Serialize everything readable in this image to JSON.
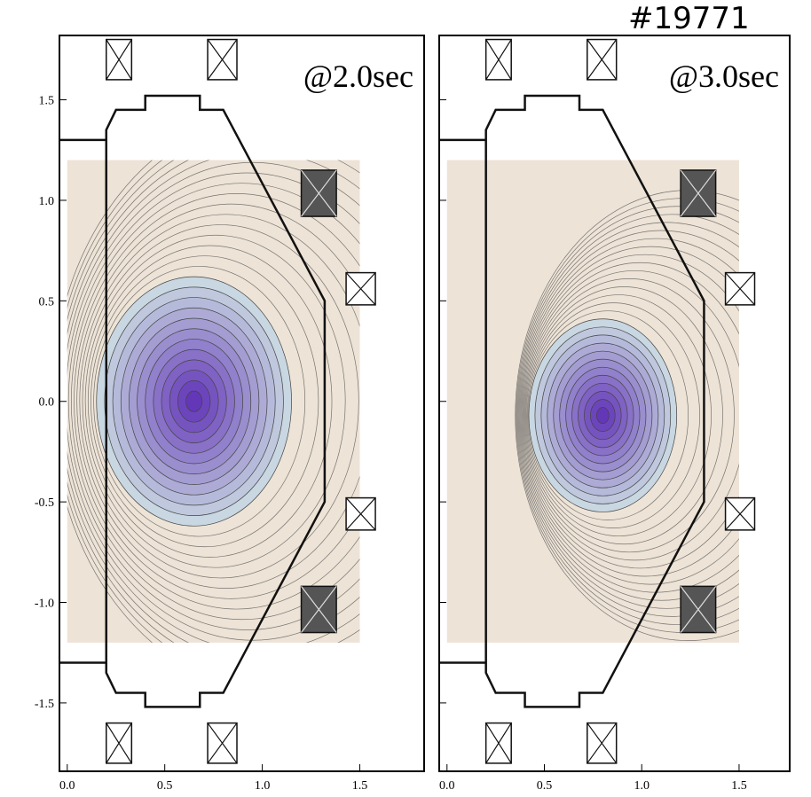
{
  "figure_label": "#19771",
  "chart_data": [
    {
      "type": "contour",
      "annotation": "@2.0sec",
      "xlim": [
        -0.04,
        1.83
      ],
      "ylim": [
        -1.84,
        1.82
      ],
      "xticks": [
        {
          "value": 0,
          "label": "0.0"
        },
        0.5,
        {
          "value": 1,
          "label": "1.0"
        },
        1.5
      ],
      "yticks": [
        -1.5,
        {
          "value": -1,
          "label": "-1.0"
        },
        -0.5,
        {
          "value": 0,
          "label": "0.0"
        },
        0.5,
        {
          "value": 1,
          "label": "1.0"
        },
        1.5
      ]
    },
    {
      "type": "contour",
      "annotation": "@3.0sec",
      "xlim": [
        -0.04,
        1.76
      ],
      "ylim": [
        -1.84,
        1.82
      ],
      "xticks": [
        {
          "value": 0,
          "label": "0.0"
        },
        0.5,
        {
          "value": 1,
          "label": "1.0"
        },
        1.5
      ],
      "yticks": [
        -1.5,
        -1,
        -0.5,
        0,
        0.5,
        1,
        1.5
      ]
    }
  ]
}
